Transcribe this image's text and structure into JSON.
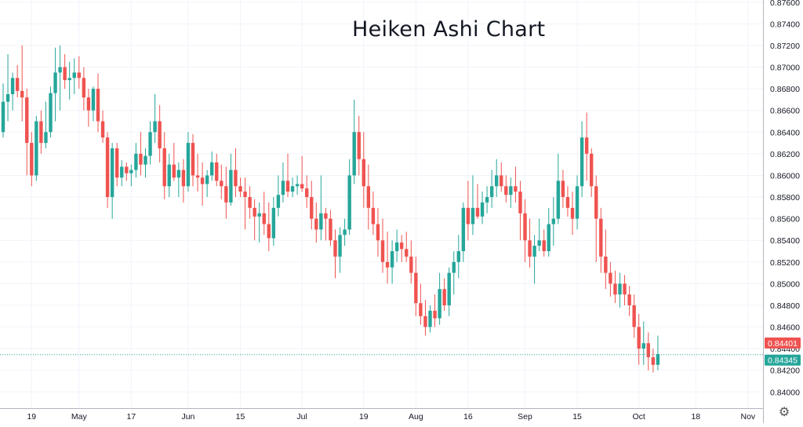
{
  "chart_data": {
    "type": "candlestick",
    "title": "Heiken Ashi Chart",
    "variant": "Heiken Ashi",
    "y_ticks": [
      "0.84000",
      "0.84200",
      "0.84400",
      "0.84600",
      "0.84800",
      "0.85000",
      "0.85200",
      "0.85400",
      "0.85600",
      "0.85800",
      "0.86000",
      "0.86200",
      "0.86400",
      "0.86600",
      "0.86800",
      "0.87000",
      "0.87200",
      "0.87400",
      "0.87600"
    ],
    "ylim": [
      0.8385,
      0.8762
    ],
    "x_ticks": [
      {
        "label": "19",
        "i": 6
      },
      {
        "label": "May",
        "i": 16
      },
      {
        "label": "17",
        "i": 27
      },
      {
        "label": "Jun",
        "i": 39
      },
      {
        "label": "15",
        "i": 50
      },
      {
        "label": "Jul",
        "i": 63
      },
      {
        "label": "19",
        "i": 76
      },
      {
        "label": "Aug",
        "i": 87
      },
      {
        "label": "16",
        "i": 98
      },
      {
        "label": "Sep",
        "i": 110
      },
      {
        "label": "15",
        "i": 121
      },
      {
        "label": "Oct",
        "i": 134
      },
      {
        "label": "18",
        "i": 146
      },
      {
        "label": "Nov",
        "i": 157
      }
    ],
    "price_labels": [
      {
        "label": "0.84401",
        "value": 0.84401,
        "color": "#ef5350"
      },
      {
        "label": "0.84345",
        "value": 0.84345,
        "color": "#26a69a"
      }
    ],
    "colors": {
      "up": "#26a69a",
      "down": "#ef5350",
      "grid": "#f0f3fa",
      "axis": "#b2b5be",
      "text": "#131722"
    },
    "ohlc": [
      [
        0.864,
        0.8685,
        0.8635,
        0.8668
      ],
      [
        0.8668,
        0.8712,
        0.865,
        0.8675
      ],
      [
        0.8675,
        0.8695,
        0.866,
        0.869
      ],
      [
        0.869,
        0.8702,
        0.8672,
        0.8678
      ],
      [
        0.8678,
        0.872,
        0.865,
        0.8672
      ],
      [
        0.8672,
        0.868,
        0.86,
        0.863
      ],
      [
        0.863,
        0.864,
        0.859,
        0.86
      ],
      [
        0.86,
        0.8655,
        0.8595,
        0.865
      ],
      [
        0.865,
        0.866,
        0.862,
        0.863
      ],
      [
        0.863,
        0.8668,
        0.8625,
        0.864
      ],
      [
        0.864,
        0.8682,
        0.8635,
        0.8676
      ],
      [
        0.8676,
        0.8718,
        0.865,
        0.8695
      ],
      [
        0.8695,
        0.872,
        0.866,
        0.87
      ],
      [
        0.87,
        0.8712,
        0.868,
        0.8688
      ],
      [
        0.8688,
        0.8705,
        0.867,
        0.869
      ],
      [
        0.869,
        0.8708,
        0.8675,
        0.8695
      ],
      [
        0.8695,
        0.871,
        0.868,
        0.869
      ],
      [
        0.869,
        0.87,
        0.866,
        0.8672
      ],
      [
        0.8672,
        0.868,
        0.8645,
        0.866
      ],
      [
        0.866,
        0.8682,
        0.865,
        0.868
      ],
      [
        0.868,
        0.8694,
        0.864,
        0.865
      ],
      [
        0.865,
        0.866,
        0.863,
        0.8635
      ],
      [
        0.8635,
        0.864,
        0.857,
        0.858
      ],
      [
        0.858,
        0.863,
        0.856,
        0.8625
      ],
      [
        0.8625,
        0.863,
        0.859,
        0.8598
      ],
      [
        0.8598,
        0.8614,
        0.859,
        0.8608
      ],
      [
        0.8608,
        0.8612,
        0.8595,
        0.8602
      ],
      [
        0.8602,
        0.861,
        0.859,
        0.8605
      ],
      [
        0.8605,
        0.863,
        0.8598,
        0.862
      ],
      [
        0.862,
        0.864,
        0.86,
        0.861
      ],
      [
        0.861,
        0.8625,
        0.8598,
        0.8618
      ],
      [
        0.8618,
        0.865,
        0.861,
        0.864
      ],
      [
        0.864,
        0.8675,
        0.863,
        0.865
      ],
      [
        0.865,
        0.8665,
        0.8612,
        0.8625
      ],
      [
        0.8625,
        0.864,
        0.8578,
        0.859
      ],
      [
        0.859,
        0.862,
        0.858,
        0.861
      ],
      [
        0.861,
        0.863,
        0.8595,
        0.8598
      ],
      [
        0.8598,
        0.8612,
        0.858,
        0.8605
      ],
      [
        0.8605,
        0.8615,
        0.8575,
        0.859
      ],
      [
        0.859,
        0.864,
        0.8585,
        0.863
      ],
      [
        0.863,
        0.8638,
        0.859,
        0.86
      ],
      [
        0.86,
        0.862,
        0.8585,
        0.8598
      ],
      [
        0.8598,
        0.8612,
        0.8572,
        0.8592
      ],
      [
        0.8592,
        0.8605,
        0.858,
        0.86
      ],
      [
        0.86,
        0.8622,
        0.8595,
        0.8612
      ],
      [
        0.8612,
        0.862,
        0.859,
        0.8595
      ],
      [
        0.8595,
        0.861,
        0.8578,
        0.859
      ],
      [
        0.859,
        0.8608,
        0.856,
        0.8575
      ],
      [
        0.8575,
        0.862,
        0.8572,
        0.8605
      ],
      [
        0.8605,
        0.8625,
        0.858,
        0.859
      ],
      [
        0.859,
        0.8598,
        0.858,
        0.8585
      ],
      [
        0.8585,
        0.8598,
        0.855,
        0.858
      ],
      [
        0.858,
        0.859,
        0.856,
        0.857
      ],
      [
        0.857,
        0.8578,
        0.854,
        0.8562
      ],
      [
        0.8562,
        0.8575,
        0.8538,
        0.8565
      ],
      [
        0.8565,
        0.8585,
        0.8545,
        0.8555
      ],
      [
        0.8555,
        0.8575,
        0.853,
        0.8542
      ],
      [
        0.8542,
        0.858,
        0.8535,
        0.857
      ],
      [
        0.857,
        0.86,
        0.8562,
        0.8582
      ],
      [
        0.8582,
        0.8612,
        0.8575,
        0.8595
      ],
      [
        0.8595,
        0.862,
        0.858,
        0.8585
      ],
      [
        0.8585,
        0.8598,
        0.858,
        0.859
      ],
      [
        0.859,
        0.86,
        0.8582,
        0.8592
      ],
      [
        0.8592,
        0.8618,
        0.8585,
        0.8588
      ],
      [
        0.8588,
        0.86,
        0.857,
        0.858
      ],
      [
        0.858,
        0.8595,
        0.855,
        0.856
      ],
      [
        0.856,
        0.8575,
        0.8538,
        0.855
      ],
      [
        0.855,
        0.86,
        0.854,
        0.8565
      ],
      [
        0.8565,
        0.857,
        0.854,
        0.856
      ],
      [
        0.856,
        0.8568,
        0.8535,
        0.854
      ],
      [
        0.854,
        0.855,
        0.8505,
        0.8525
      ],
      [
        0.8525,
        0.8552,
        0.851,
        0.8545
      ],
      [
        0.8545,
        0.856,
        0.8535,
        0.855
      ],
      [
        0.855,
        0.8615,
        0.8545,
        0.86
      ],
      [
        0.86,
        0.867,
        0.8592,
        0.864
      ],
      [
        0.864,
        0.8655,
        0.86,
        0.8615
      ],
      [
        0.8615,
        0.864,
        0.857,
        0.859
      ],
      [
        0.859,
        0.861,
        0.855,
        0.857
      ],
      [
        0.857,
        0.8585,
        0.8545,
        0.8555
      ],
      [
        0.8555,
        0.857,
        0.8525,
        0.854
      ],
      [
        0.854,
        0.856,
        0.851,
        0.852
      ],
      [
        0.852,
        0.8548,
        0.85,
        0.8515
      ],
      [
        0.8515,
        0.854,
        0.85,
        0.853
      ],
      [
        0.853,
        0.855,
        0.852,
        0.8538
      ],
      [
        0.8538,
        0.8545,
        0.852,
        0.8532
      ],
      [
        0.8532,
        0.8548,
        0.852,
        0.8525
      ],
      [
        0.8525,
        0.854,
        0.85,
        0.851
      ],
      [
        0.851,
        0.8525,
        0.847,
        0.8482
      ],
      [
        0.8482,
        0.85,
        0.8462,
        0.847
      ],
      [
        0.847,
        0.8485,
        0.8452,
        0.846
      ],
      [
        0.846,
        0.848,
        0.8455,
        0.8475
      ],
      [
        0.8475,
        0.849,
        0.846,
        0.8468
      ],
      [
        0.8468,
        0.851,
        0.8462,
        0.8495
      ],
      [
        0.8495,
        0.8505,
        0.8475,
        0.848
      ],
      [
        0.848,
        0.8515,
        0.847,
        0.851
      ],
      [
        0.851,
        0.853,
        0.849,
        0.852
      ],
      [
        0.852,
        0.8545,
        0.8505,
        0.853
      ],
      [
        0.853,
        0.8575,
        0.852,
        0.857
      ],
      [
        0.857,
        0.8595,
        0.854,
        0.8555
      ],
      [
        0.8555,
        0.86,
        0.8545,
        0.857
      ],
      [
        0.857,
        0.8592,
        0.856,
        0.8562
      ],
      [
        0.8562,
        0.8585,
        0.8555,
        0.8575
      ],
      [
        0.8575,
        0.859,
        0.8565,
        0.858
      ],
      [
        0.858,
        0.8605,
        0.857,
        0.859
      ],
      [
        0.859,
        0.8615,
        0.858,
        0.86
      ],
      [
        0.86,
        0.8612,
        0.8585,
        0.859
      ],
      [
        0.859,
        0.86,
        0.8575,
        0.8582
      ],
      [
        0.8582,
        0.8598,
        0.857,
        0.859
      ],
      [
        0.859,
        0.8608,
        0.8575,
        0.8585
      ],
      [
        0.8585,
        0.8595,
        0.854,
        0.8565
      ],
      [
        0.8565,
        0.8578,
        0.852,
        0.854
      ],
      [
        0.854,
        0.856,
        0.8515,
        0.8525
      ],
      [
        0.8525,
        0.8545,
        0.85,
        0.8535
      ],
      [
        0.8535,
        0.856,
        0.853,
        0.854
      ],
      [
        0.854,
        0.855,
        0.8525,
        0.853
      ],
      [
        0.853,
        0.857,
        0.8525,
        0.8555
      ],
      [
        0.8555,
        0.858,
        0.8535,
        0.856
      ],
      [
        0.856,
        0.862,
        0.8555,
        0.8595
      ],
      [
        0.8595,
        0.8605,
        0.857,
        0.858
      ],
      [
        0.858,
        0.859,
        0.8562,
        0.857
      ],
      [
        0.857,
        0.8585,
        0.8545,
        0.856
      ],
      [
        0.856,
        0.86,
        0.855,
        0.859
      ],
      [
        0.859,
        0.865,
        0.858,
        0.8635
      ],
      [
        0.8635,
        0.8658,
        0.8595,
        0.862
      ],
      [
        0.862,
        0.8625,
        0.858,
        0.859
      ],
      [
        0.859,
        0.86,
        0.852,
        0.856
      ],
      [
        0.856,
        0.857,
        0.851,
        0.8525
      ],
      [
        0.8525,
        0.855,
        0.8495,
        0.851
      ],
      [
        0.851,
        0.852,
        0.8488,
        0.85
      ],
      [
        0.85,
        0.8512,
        0.8482,
        0.849
      ],
      [
        0.849,
        0.851,
        0.8478,
        0.85
      ],
      [
        0.85,
        0.8508,
        0.848,
        0.849
      ],
      [
        0.849,
        0.8498,
        0.847,
        0.848
      ],
      [
        0.848,
        0.849,
        0.845,
        0.846
      ],
      [
        0.846,
        0.8472,
        0.8425,
        0.844
      ],
      [
        0.844,
        0.8465,
        0.8425,
        0.8445
      ],
      [
        0.8445,
        0.8455,
        0.842,
        0.8432
      ],
      [
        0.8432,
        0.844,
        0.8418,
        0.8425
      ],
      [
        0.8425,
        0.8452,
        0.842,
        0.8435
      ]
    ]
  },
  "toolbar": {
    "settings_icon": "gear-icon",
    "settings_glyph": "⚙"
  }
}
